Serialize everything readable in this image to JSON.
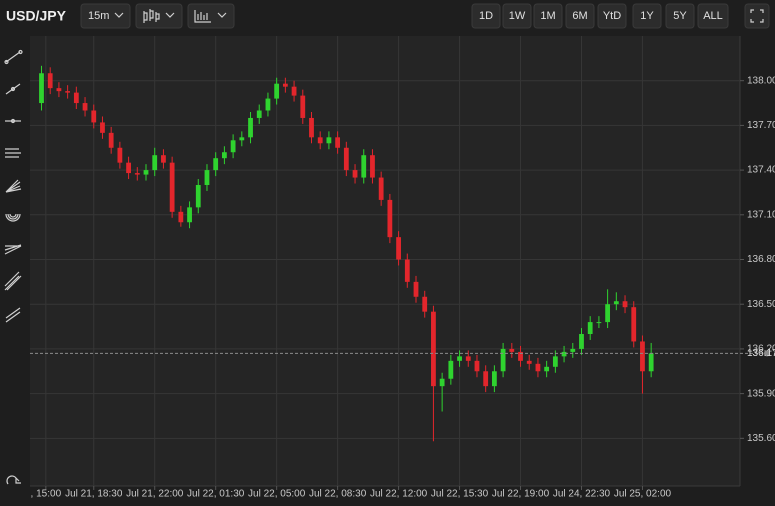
{
  "toolbar": {
    "symbol": "USD/JPY",
    "interval": "15m",
    "ranges": [
      "1D",
      "1W",
      "1M",
      "6M",
      "YtD",
      "1Y",
      "5Y",
      "ALL"
    ]
  },
  "chart_data": {
    "type": "candlestick",
    "up_color": "#2fd32f",
    "down_color": "#e3262c",
    "grid": true,
    "open": [
      137.85,
      138.05,
      137.95,
      137.93,
      137.92,
      137.85,
      137.8,
      137.72,
      137.65,
      137.55,
      137.45,
      137.38,
      137.37,
      137.4,
      137.5,
      137.45,
      137.12,
      137.05,
      137.15,
      137.3,
      137.4,
      137.48,
      137.52,
      137.6,
      137.62,
      137.75,
      137.8,
      137.88,
      137.98,
      137.96,
      137.9,
      137.75,
      137.62,
      137.58,
      137.62,
      137.55,
      137.4,
      137.35,
      137.5,
      137.35,
      137.2,
      136.95,
      136.8,
      136.65,
      136.55,
      136.45,
      135.95,
      136.0,
      136.12,
      136.15,
      136.12,
      136.05,
      135.95,
      136.05,
      136.2,
      136.18,
      136.12,
      136.1,
      136.05,
      136.08,
      136.15,
      136.18,
      136.2,
      136.3,
      136.38,
      136.38,
      136.5,
      136.52,
      136.48,
      136.25,
      136.05
    ],
    "high": [
      138.1,
      138.09,
      137.99,
      137.97,
      137.96,
      137.89,
      137.84,
      137.76,
      137.69,
      137.59,
      137.49,
      137.42,
      137.44,
      137.55,
      137.54,
      137.49,
      137.16,
      137.19,
      137.34,
      137.44,
      137.52,
      137.56,
      137.64,
      137.66,
      137.79,
      137.84,
      137.92,
      138.02,
      138.02,
      138.0,
      137.94,
      137.79,
      137.66,
      137.66,
      137.66,
      137.59,
      137.44,
      137.54,
      137.54,
      137.39,
      137.24,
      136.99,
      136.84,
      136.69,
      136.59,
      136.49,
      136.04,
      136.16,
      136.19,
      136.19,
      136.16,
      136.09,
      136.09,
      136.24,
      136.24,
      136.22,
      136.16,
      136.14,
      136.12,
      136.19,
      136.22,
      136.24,
      136.34,
      136.42,
      136.42,
      136.6,
      136.58,
      136.56,
      136.52,
      136.29,
      136.24
    ],
    "low": [
      137.8,
      137.91,
      137.89,
      137.88,
      137.81,
      137.76,
      137.68,
      137.61,
      137.51,
      137.41,
      137.34,
      137.33,
      137.33,
      137.36,
      137.41,
      137.08,
      137.02,
      137.01,
      137.11,
      137.26,
      137.36,
      137.44,
      137.48,
      137.56,
      137.58,
      137.71,
      137.76,
      137.84,
      137.92,
      137.86,
      137.71,
      137.58,
      137.54,
      137.54,
      137.51,
      137.36,
      137.31,
      137.31,
      137.31,
      137.16,
      136.91,
      136.76,
      136.61,
      136.51,
      136.41,
      135.58,
      135.78,
      135.96,
      136.08,
      136.08,
      136.01,
      135.91,
      135.91,
      136.01,
      136.14,
      136.08,
      136.06,
      136.01,
      136.01,
      136.04,
      136.11,
      136.14,
      136.16,
      136.26,
      136.34,
      136.34,
      136.46,
      136.44,
      136.21,
      135.9,
      136.01
    ],
    "close": [
      138.05,
      137.95,
      137.93,
      137.92,
      137.85,
      137.8,
      137.72,
      137.65,
      137.55,
      137.45,
      137.38,
      137.37,
      137.4,
      137.5,
      137.45,
      137.12,
      137.05,
      137.15,
      137.3,
      137.4,
      137.48,
      137.52,
      137.6,
      137.62,
      137.75,
      137.8,
      137.88,
      137.98,
      137.96,
      137.9,
      137.75,
      137.62,
      137.58,
      137.62,
      137.55,
      137.4,
      137.35,
      137.5,
      137.35,
      137.2,
      136.95,
      136.8,
      136.65,
      136.55,
      136.45,
      135.95,
      136.0,
      136.12,
      136.15,
      136.12,
      136.05,
      135.95,
      136.05,
      136.2,
      136.18,
      136.12,
      136.1,
      136.05,
      136.08,
      136.15,
      136.18,
      136.2,
      136.3,
      136.38,
      136.38,
      136.5,
      136.52,
      136.48,
      136.25,
      136.05,
      136.17
    ],
    "ylim": [
      135.28,
      138.3
    ],
    "yticks": [
      {
        "value": 135.6,
        "label": "135.60"
      },
      {
        "value": 135.9,
        "label": "135.90"
      },
      {
        "value": 136.2,
        "label": "136.20"
      },
      {
        "value": 136.5,
        "label": "136.50"
      },
      {
        "value": 136.8,
        "label": "136.80"
      },
      {
        "value": 137.1,
        "label": "137.10"
      },
      {
        "value": 137.4,
        "label": "137.40"
      },
      {
        "value": 137.7,
        "label": "137.70"
      },
      {
        "value": 138,
        "label": "138.00"
      }
    ],
    "xlim": [
      -1.32,
      80.2
    ],
    "xticks": [
      {
        "value": 0.5,
        "label": ", 15:00"
      },
      {
        "value": 6,
        "label": "Jul 21, 18:30"
      },
      {
        "value": 13,
        "label": "Jul 21, 22:00"
      },
      {
        "value": 20,
        "label": "Jul 22, 01:30"
      },
      {
        "value": 27,
        "label": "Jul 22, 05:00"
      },
      {
        "value": 34,
        "label": "Jul 22, 08:30"
      },
      {
        "value": 41,
        "label": "Jul 22, 12:00"
      },
      {
        "value": 48,
        "label": "Jul 22, 15:30"
      },
      {
        "value": 55,
        "label": "Jul 22, 19:00"
      },
      {
        "value": 62,
        "label": "Jul 24, 22:30"
      },
      {
        "value": 69,
        "label": "Jul 25, 02:00"
      }
    ],
    "last_price": 136.17
  }
}
